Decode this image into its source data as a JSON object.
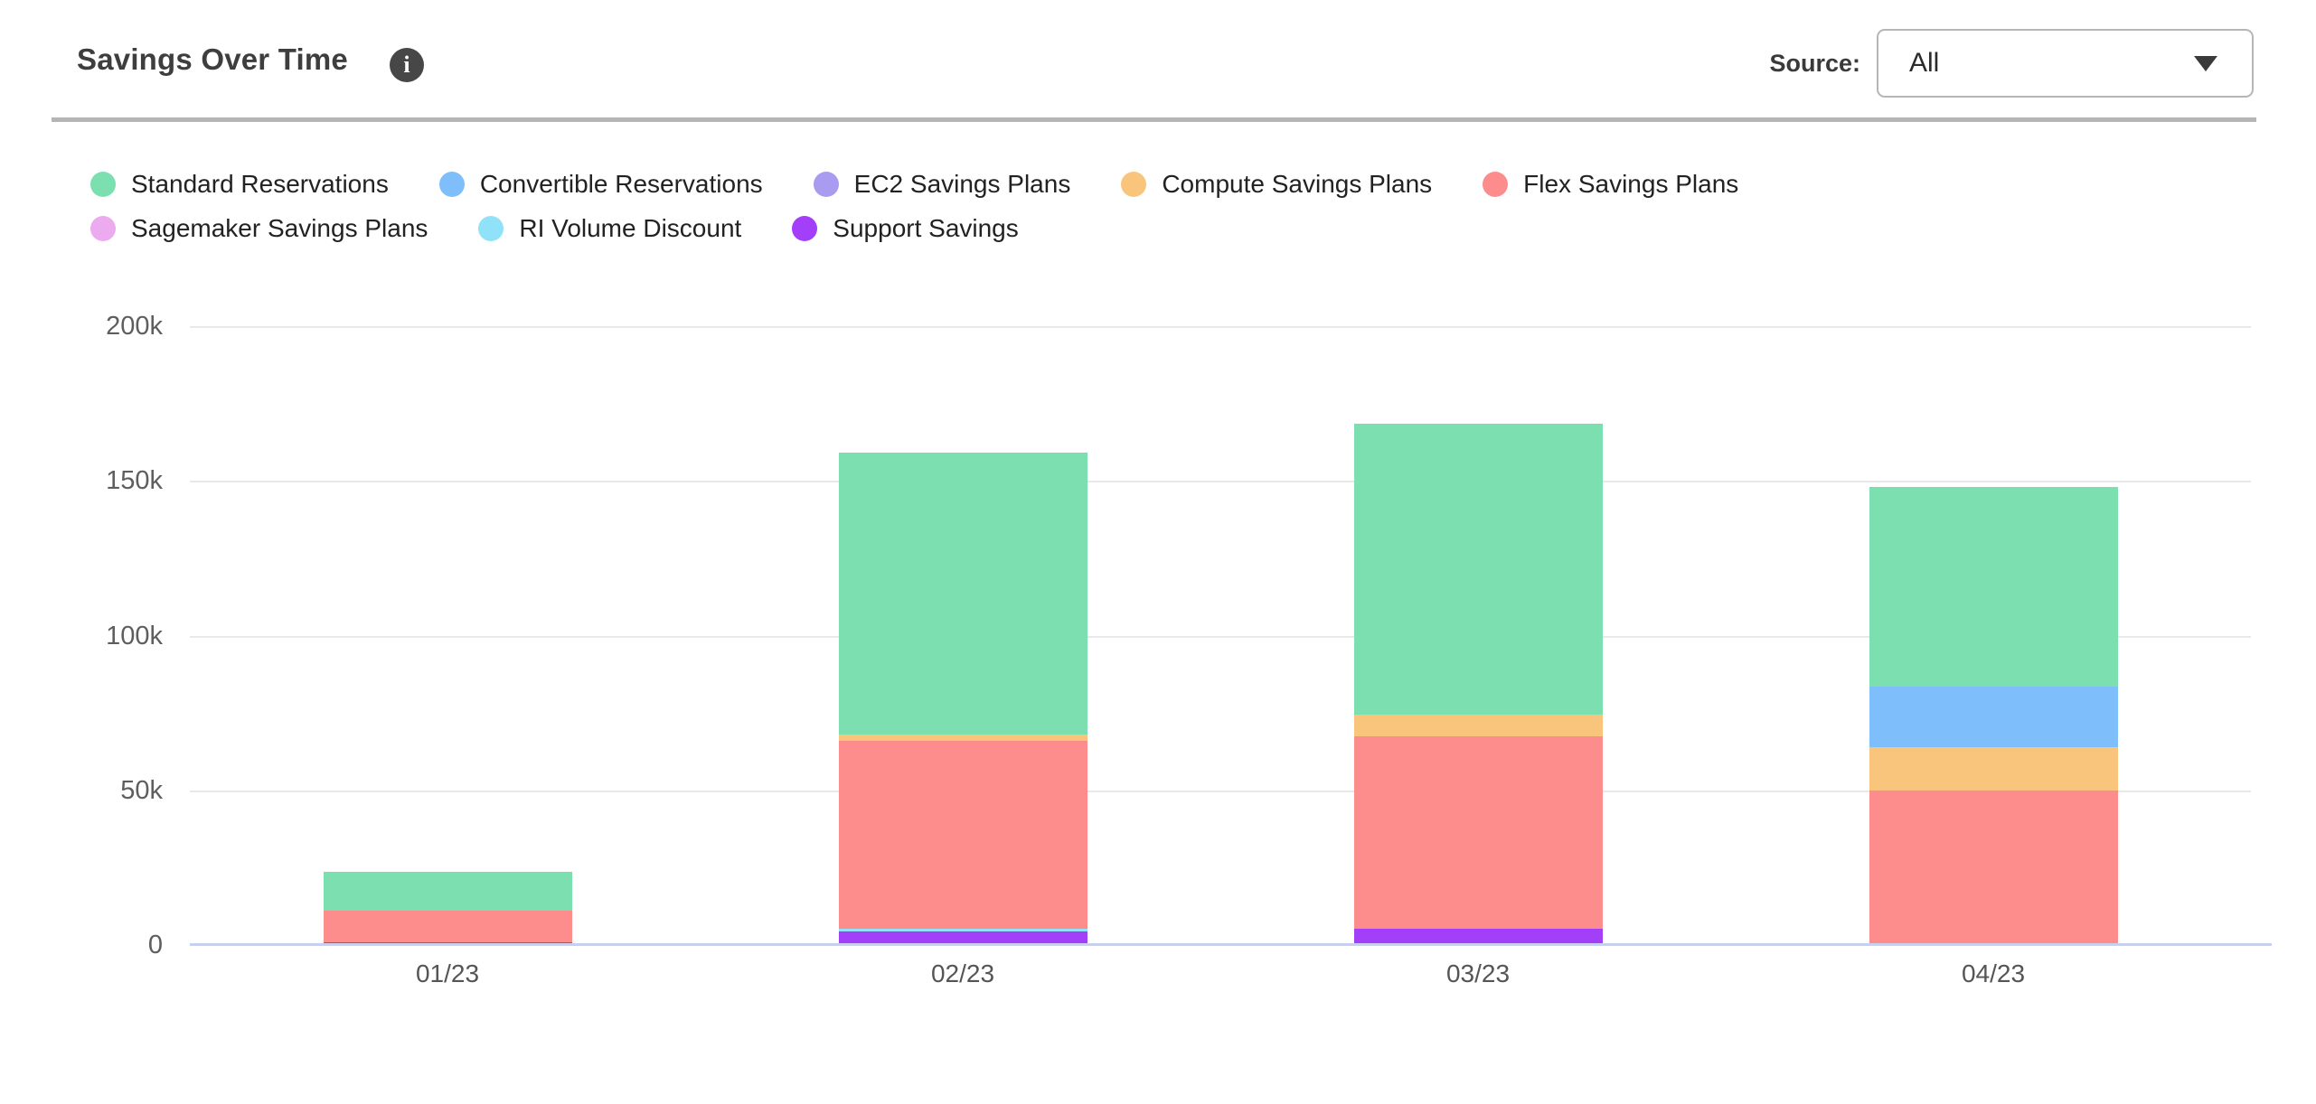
{
  "header": {
    "title": "Savings Over Time",
    "source_label": "Source:",
    "source_value": "All"
  },
  "icons": {
    "info": "info-icon",
    "dropdown_caret": "chevron-down-icon"
  },
  "colors": {
    "divider": "#b5b5b5",
    "grid_line": "#e9e9e9",
    "axis_baseline": "#c9d0ee",
    "info_icon_bg": "#474747",
    "dropdown_border": "#b6b6b6"
  },
  "chart_data": {
    "type": "bar",
    "stacked": true,
    "title": "Savings Over Time",
    "categories": [
      "01/23",
      "02/23",
      "03/23",
      "04/23"
    ],
    "y_tick_labels": [
      "200k",
      "150k",
      "100k",
      "50k",
      "0"
    ],
    "ylim": [
      0,
      200000
    ],
    "grid": true,
    "legend_position": "top",
    "stacking": "series[0] renders at top of stack, last series at bottom",
    "series": [
      {
        "name": "Standard Reservations",
        "color": "#7cdfb0",
        "values": [
          12600,
          91200,
          94200,
          64600
        ]
      },
      {
        "name": "Convertible Reservations",
        "color": "#7ebefb",
        "values": [
          0,
          0,
          0,
          19600
        ]
      },
      {
        "name": "EC2 Savings Plans",
        "color": "#a89bf0",
        "values": [
          0,
          0,
          0,
          0
        ]
      },
      {
        "name": "Compute Savings Plans",
        "color": "#f9c57d",
        "values": [
          0,
          2000,
          7000,
          13900
        ]
      },
      {
        "name": "Flex Savings Plans",
        "color": "#fd8d8d",
        "values": [
          10100,
          60700,
          62200,
          50000
        ]
      },
      {
        "name": "Sagemaker Savings Plans",
        "color": "#ecabef",
        "values": [
          0,
          0,
          0,
          0
        ]
      },
      {
        "name": "RI Volume Discount",
        "color": "#90e2f8",
        "values": [
          0,
          900,
          0,
          0
        ]
      },
      {
        "name": "Support Savings",
        "color": "#a33ff8",
        "values": [
          900,
          4400,
          5200,
          0
        ]
      }
    ]
  }
}
